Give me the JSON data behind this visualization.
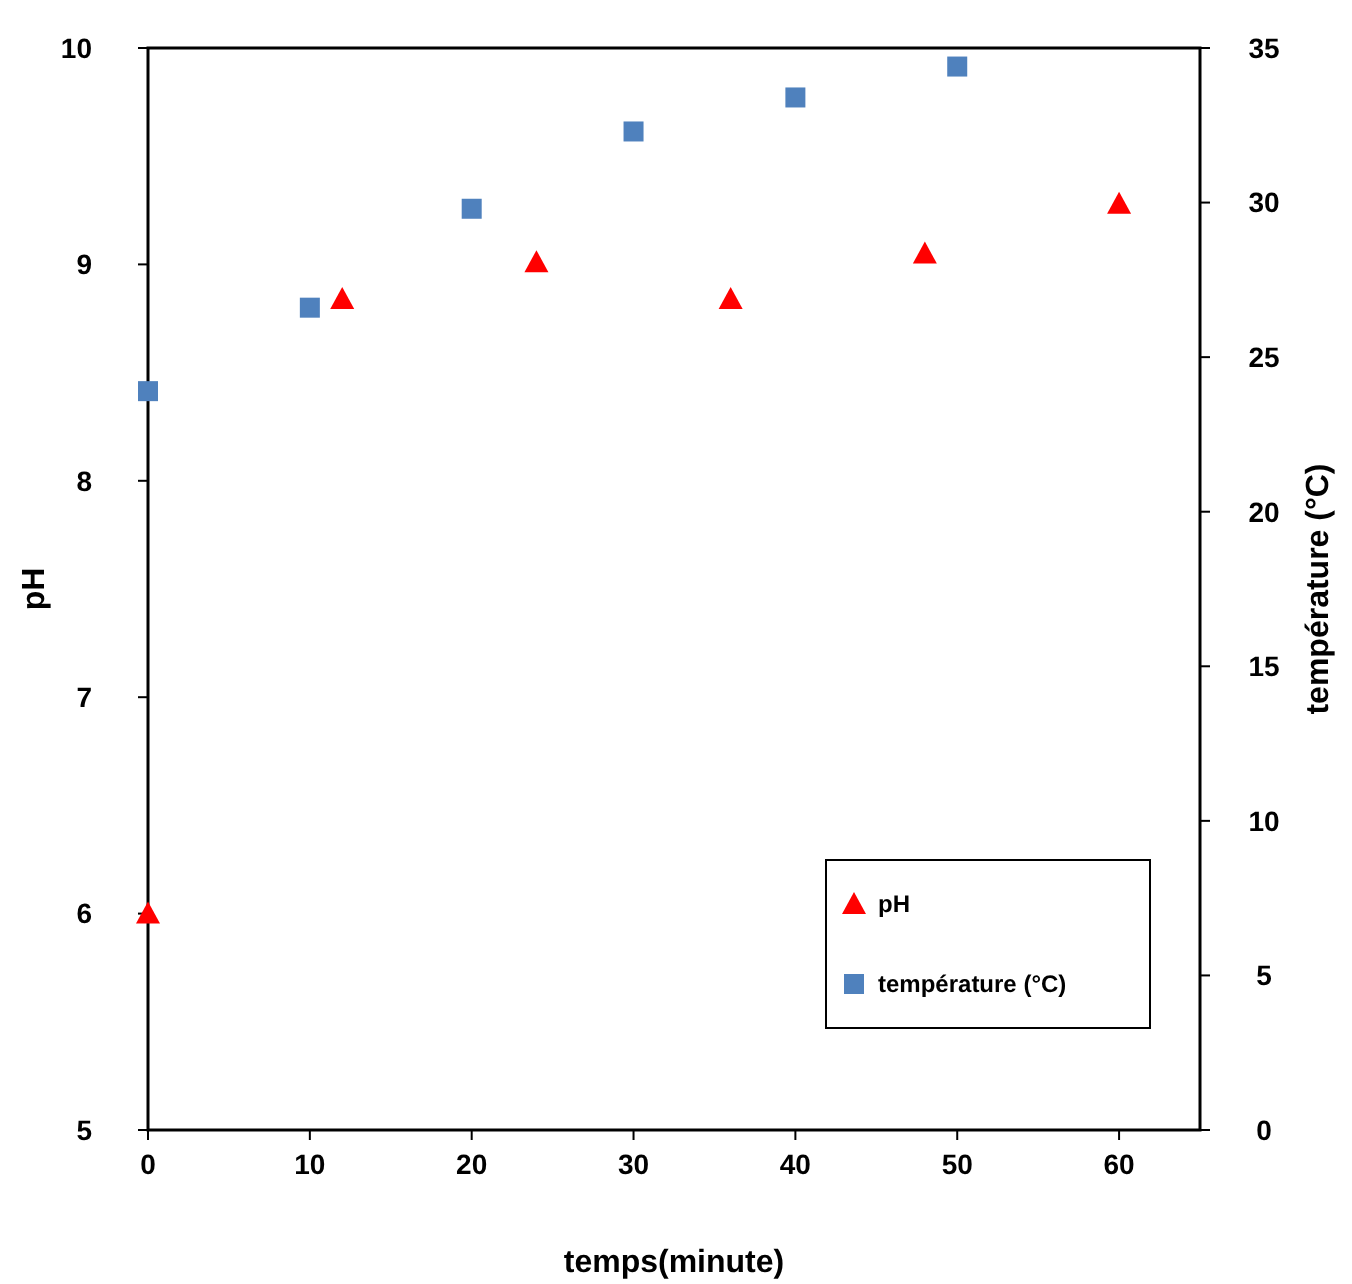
{
  "chart_data": {
    "type": "scatter",
    "xlabel": "temps(minute)",
    "ylabel": "pH",
    "y2label": "température (°C)",
    "xlim": [
      0,
      65
    ],
    "xticks": [
      0,
      10,
      20,
      30,
      40,
      50,
      60
    ],
    "ylim": [
      5,
      10
    ],
    "yticks": [
      5,
      6,
      7,
      8,
      9,
      10
    ],
    "y2lim": [
      0,
      35
    ],
    "y2ticks": [
      0,
      5,
      10,
      15,
      20,
      25,
      30,
      35
    ],
    "legend": "bottom right",
    "grid": false,
    "series": [
      {
        "name": "pH",
        "color": "#ff0000",
        "marker": "triangle",
        "x": [
          0,
          12,
          24,
          36,
          48,
          60
        ],
        "values": [
          6.0,
          8.84,
          9.01,
          8.84,
          9.05,
          9.28
        ]
      },
      {
        "name": "température (°C)",
        "color": "#4f81bd",
        "marker": "square",
        "axis": "y2",
        "x": [
          0,
          10,
          20,
          30,
          40,
          50
        ],
        "values": [
          23.9,
          26.6,
          29.8,
          32.3,
          33.4,
          34.4
        ]
      }
    ]
  }
}
